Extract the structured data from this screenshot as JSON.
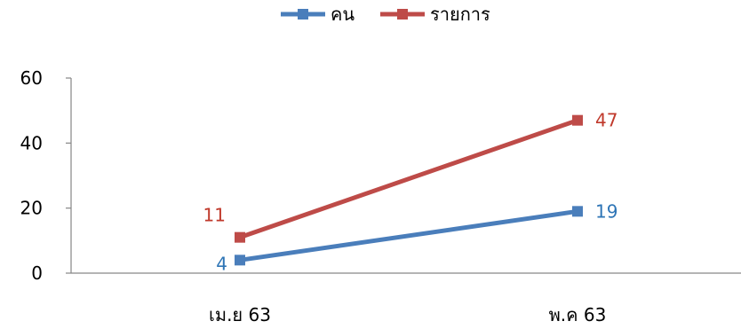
{
  "chart_data": {
    "type": "line",
    "title": "",
    "xlabel": "",
    "ylabel": "",
    "categories": [
      "เม.ย 63",
      "พ.ค 63"
    ],
    "ylim": [
      0,
      60
    ],
    "yticks": [
      0,
      20,
      40,
      60
    ],
    "grid": false,
    "legend_position": "top",
    "series": [
      {
        "name": "คน",
        "values": [
          4,
          19
        ],
        "color": "#4a7ebb",
        "label_color": "#2e75b6"
      },
      {
        "name": "รายการ",
        "values": [
          11,
          47
        ],
        "color": "#be4b48",
        "label_color": "#c0392b"
      }
    ]
  }
}
